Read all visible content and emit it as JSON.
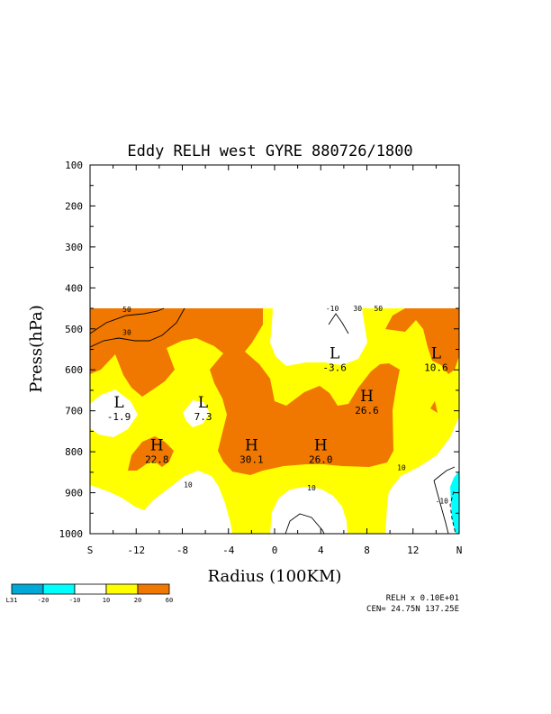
{
  "chart_data": {
    "type": "contour",
    "title": "Eddy RELH west GYRE 880726/1800",
    "ylabel": "Press(hPa)",
    "xlabel": "Radius (100KM)",
    "x_ticks": [
      "S",
      "-12",
      "-8",
      "-4",
      "0",
      "4",
      "8",
      "12",
      "N"
    ],
    "y_ticks": [
      "100",
      "200",
      "300",
      "400",
      "500",
      "600",
      "700",
      "800",
      "900",
      "1000"
    ],
    "xlim": [
      -16,
      16
    ],
    "ylim": [
      1000,
      100
    ],
    "data_top_pressure": 450,
    "color_scale": {
      "labels": [
        "L31",
        "-20",
        "-10",
        "10",
        "20",
        "60"
      ],
      "colors": [
        "#00a9d6",
        "#00ffff",
        "#ffffff",
        "#ffff00",
        "#f07800"
      ]
    },
    "extrema": [
      {
        "type": "L",
        "value": "-1.9",
        "x": -13.5,
        "p": 705
      },
      {
        "type": "L",
        "value": "7.3",
        "x": -6.2,
        "p": 705
      },
      {
        "type": "L",
        "value": "-3.6",
        "x": 5.2,
        "p": 585
      },
      {
        "type": "L",
        "value": "10.6",
        "x": 14.0,
        "p": 585
      },
      {
        "type": "H",
        "value": "22.8",
        "x": -10.2,
        "p": 810
      },
      {
        "type": "H",
        "value": "30.1",
        "x": -2.0,
        "p": 810
      },
      {
        "type": "H",
        "value": "26.0",
        "x": 4.0,
        "p": 810
      },
      {
        "type": "H",
        "value": "26.6",
        "x": 8.0,
        "p": 690
      }
    ],
    "contour_labels": [
      {
        "text": "50",
        "x": -12.8,
        "p": 452
      },
      {
        "text": "30",
        "x": -12.8,
        "p": 508
      },
      {
        "text": "-10",
        "x": 5.0,
        "p": 450
      },
      {
        "text": "30",
        "x": 7.2,
        "p": 450
      },
      {
        "text": "50",
        "x": 9.0,
        "p": 450
      },
      {
        "text": "10",
        "x": -7.5,
        "p": 880
      },
      {
        "text": "10",
        "x": 3.2,
        "p": 888
      },
      {
        "text": "10",
        "x": 11.0,
        "p": 838
      },
      {
        "text": "-10",
        "x": 14.5,
        "p": 920
      }
    ]
  },
  "footer": {
    "scale_note": "RELH x  0.10E+01",
    "center": "CEN= 24.75N  137.25E"
  }
}
